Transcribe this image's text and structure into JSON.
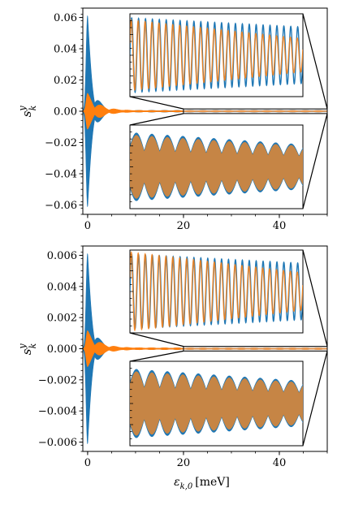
{
  "chart_data": [
    {
      "type": "line",
      "panel": "top",
      "ylabel": "s_k^y",
      "ylabel_main": "s",
      "ylabel_sup": "y",
      "ylabel_sub": "k",
      "xlim": [
        -1,
        50
      ],
      "ylim": [
        -0.066,
        0.066
      ],
      "xticks": [
        0,
        20,
        40
      ],
      "xtick_labels": [
        "0",
        "20",
        "40"
      ],
      "yticks": [
        -0.06,
        -0.04,
        -0.02,
        0.0,
        0.02,
        0.04,
        0.06
      ],
      "ytick_labels": [
        "−0.06",
        "−0.04",
        "−0.02",
        "0.00",
        "0.02",
        "0.04",
        "0.06"
      ],
      "series": [
        {
          "color": "#1f77b4",
          "peak_amplitude": 0.061,
          "decay_scale": 1.1,
          "tail_floor": 0.0006
        },
        {
          "color": "#ff7f0e",
          "peak_amplitude": 0.011,
          "decay_scale": 2.4,
          "tail_floor": 0.0005
        }
      ],
      "zoom_window": {
        "x": [
          20,
          50
        ],
        "y": [
          -0.0015,
          0.0015
        ]
      },
      "insets": [
        "upper",
        "lower"
      ]
    },
    {
      "type": "line",
      "panel": "bottom",
      "ylabel": "s_k^y",
      "ylabel_main": "s",
      "ylabel_sup": "y",
      "ylabel_sub": "k",
      "xlabel": "ε_k,0 [meV]",
      "xlabel_main": "ε",
      "xlabel_sub": "k,0",
      "xlabel_unit": "[meV]",
      "xlim": [
        -1,
        50
      ],
      "ylim": [
        -0.0066,
        0.0066
      ],
      "xticks": [
        0,
        20,
        40
      ],
      "xtick_labels": [
        "0",
        "20",
        "40"
      ],
      "yticks": [
        -0.006,
        -0.004,
        -0.002,
        0.0,
        0.002,
        0.004,
        0.006
      ],
      "ytick_labels": [
        "−0.006",
        "−0.004",
        "−0.002",
        "0.000",
        "0.002",
        "0.004",
        "0.006"
      ],
      "series": [
        {
          "color": "#1f77b4",
          "peak_amplitude": 0.0061,
          "decay_scale": 1.1,
          "tail_floor": 6e-05
        },
        {
          "color": "#ff7f0e",
          "peak_amplitude": 0.0011,
          "decay_scale": 2.4,
          "tail_floor": 6e-05
        }
      ],
      "zoom_window": {
        "x": [
          20,
          50
        ],
        "y": [
          -0.00015,
          0.00015
        ]
      },
      "insets": [
        "upper",
        "lower"
      ]
    }
  ]
}
